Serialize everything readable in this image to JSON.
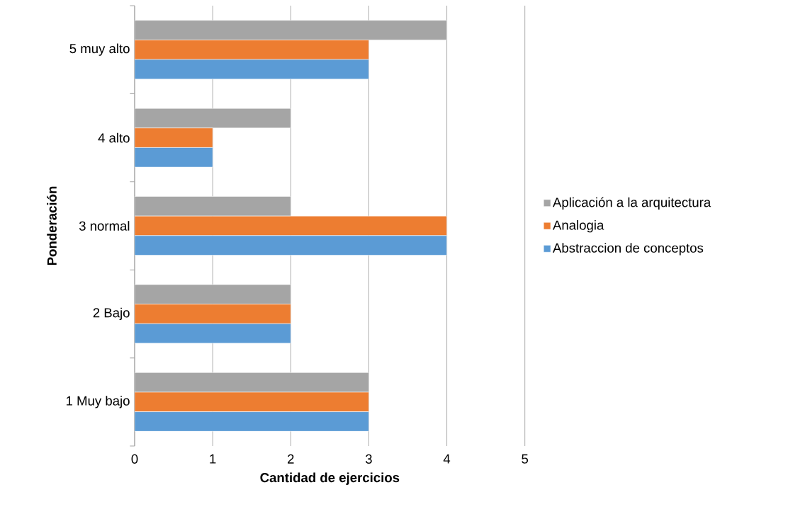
{
  "chart_data": {
    "type": "bar",
    "orientation": "horizontal",
    "xlabel": "Cantidad de ejercicios",
    "ylabel": "Ponderación",
    "categories": [
      "5 muy alto",
      "4 alto",
      "3 normal",
      "2 Bajo",
      "1 Muy bajo"
    ],
    "series": [
      {
        "name": "Aplicación a la arquitectura",
        "color": "#a5a5a5",
        "values": [
          4,
          2,
          2,
          2,
          3
        ]
      },
      {
        "name": "Analogia",
        "color": "#ed7d31",
        "values": [
          3,
          1,
          4,
          2,
          3
        ]
      },
      {
        "name": "Abstraccion de conceptos",
        "color": "#5b9bd5",
        "values": [
          3,
          1,
          4,
          2,
          3
        ]
      }
    ],
    "xlim": [
      0,
      5
    ],
    "xticks": [
      0,
      1,
      2,
      3,
      4,
      5
    ],
    "grid": "x",
    "legend": "right"
  }
}
